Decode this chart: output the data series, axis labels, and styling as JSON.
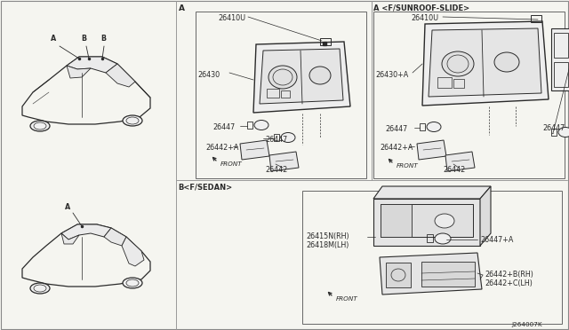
{
  "bg_color": "#f5f5f0",
  "line_color": "#2a2a2a",
  "diagram_code": "J264007K",
  "fig_width": 6.4,
  "fig_height": 3.72,
  "dpi": 100,
  "labels": {
    "section_A": "A",
    "section_A_sunroof": "A <F/SUNROOF-SLIDE>",
    "section_B": "B<F/SEDAN>",
    "car1_labels": [
      "A",
      "B",
      "B"
    ],
    "car2_label": "A",
    "part_26410U": "26410U",
    "part_26430": "26430",
    "part_26430A": "26430+A",
    "part_26447": "26447",
    "part_26442A": "26442+A",
    "part_26442": "26442",
    "part_26447A": "26447+A",
    "part_26415N": "26415N(RH)",
    "part_26418M": "26418M(LH)",
    "part_26442B": "26442+B(RH)",
    "part_26442C": "26442+C(LH)",
    "front": "FRONT"
  },
  "font_size": 5.8,
  "font_size_small": 5.2,
  "font_size_section": 6.5
}
